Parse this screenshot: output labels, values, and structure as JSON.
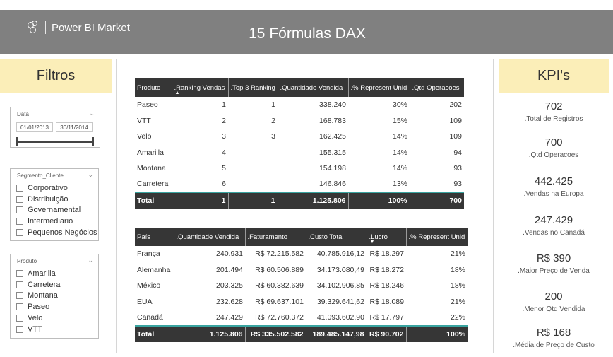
{
  "header": {
    "brand": "Power BI Market",
    "title": "15 Fórmulas DAX"
  },
  "filters": {
    "title": "Filtros",
    "date_slicer": {
      "label": "Data",
      "start": "01/01/2013",
      "end": "30/11/2014"
    },
    "segment_slicer": {
      "label": "Segmento_Cliente",
      "items": [
        "Corporativo",
        "Distribuição",
        "Governamental",
        "Intermediario",
        "Pequenos Negócios"
      ]
    },
    "product_slicer": {
      "label": "Produto",
      "items": [
        "Amarilla",
        "Carretera",
        "Montana",
        "Paseo",
        "Velo",
        "VTT"
      ]
    }
  },
  "product_table": {
    "headers": [
      "Produto",
      ".Ranking Vendas",
      ".Top 3 Ranking",
      ".Quantidade Vendida",
      ".% Represent Unid",
      ".Qtd Operacoes"
    ],
    "rows": [
      [
        "Paseo",
        "1",
        "1",
        "338.240",
        "30%",
        "202"
      ],
      [
        "VTT",
        "2",
        "2",
        "168.783",
        "15%",
        "109"
      ],
      [
        "Velo",
        "3",
        "3",
        "162.425",
        "14%",
        "109"
      ],
      [
        "Amarilla",
        "4",
        "",
        "155.315",
        "14%",
        "94"
      ],
      [
        "Montana",
        "5",
        "",
        "154.198",
        "14%",
        "93"
      ],
      [
        "Carretera",
        "6",
        "",
        "146.846",
        "13%",
        "93"
      ]
    ],
    "total": [
      "Total",
      "1",
      "1",
      "1.125.806",
      "100%",
      "700"
    ]
  },
  "country_table": {
    "headers": [
      "País",
      ".Quantidade Vendida",
      ".Faturamento",
      ".Custo Total",
      ".Lucro",
      ".% Represent Unid"
    ],
    "rows": [
      [
        "França",
        "240.931",
        "R$ 72.215.582",
        "40.785.916,12",
        "R$ 18.297",
        "21%"
      ],
      [
        "Alemanha",
        "201.494",
        "R$ 60.506.889",
        "34.173.080,49",
        "R$ 18.272",
        "18%"
      ],
      [
        "México",
        "203.325",
        "R$ 60.382.639",
        "34.102.906,85",
        "R$ 18.246",
        "18%"
      ],
      [
        "EUA",
        "232.628",
        "R$ 69.637.101",
        "39.329.641,62",
        "R$ 18.089",
        "21%"
      ],
      [
        "Canadá",
        "247.429",
        "R$ 72.760.372",
        "41.093.602,90",
        "R$ 17.797",
        "22%"
      ]
    ],
    "total": [
      "Total",
      "1.125.806",
      "R$ 335.502.582",
      "189.485.147,98",
      "R$ 90.702",
      "100%"
    ]
  },
  "kpis": {
    "title": "KPI's",
    "items": [
      {
        "value": "702",
        "label": ".Total de Registros"
      },
      {
        "value": "700",
        "label": ".Qtd Operacoes"
      },
      {
        "value": "442.425",
        "label": ".Vendas na Europa"
      },
      {
        "value": "247.429",
        "label": ".Vendas no Canadá"
      },
      {
        "value": "R$ 390",
        "label": ".Maior Preço de Venda"
      },
      {
        "value": "200",
        "label": ".Menor Qtd Vendida"
      },
      {
        "value": "R$ 168",
        "label": ".Média de Preço de Custo"
      }
    ]
  },
  "colors": {
    "header_bg": "#808080",
    "banner_bg": "#fbeeb8",
    "table_header_bg": "#363636",
    "total_accent": "#39a4a0"
  }
}
